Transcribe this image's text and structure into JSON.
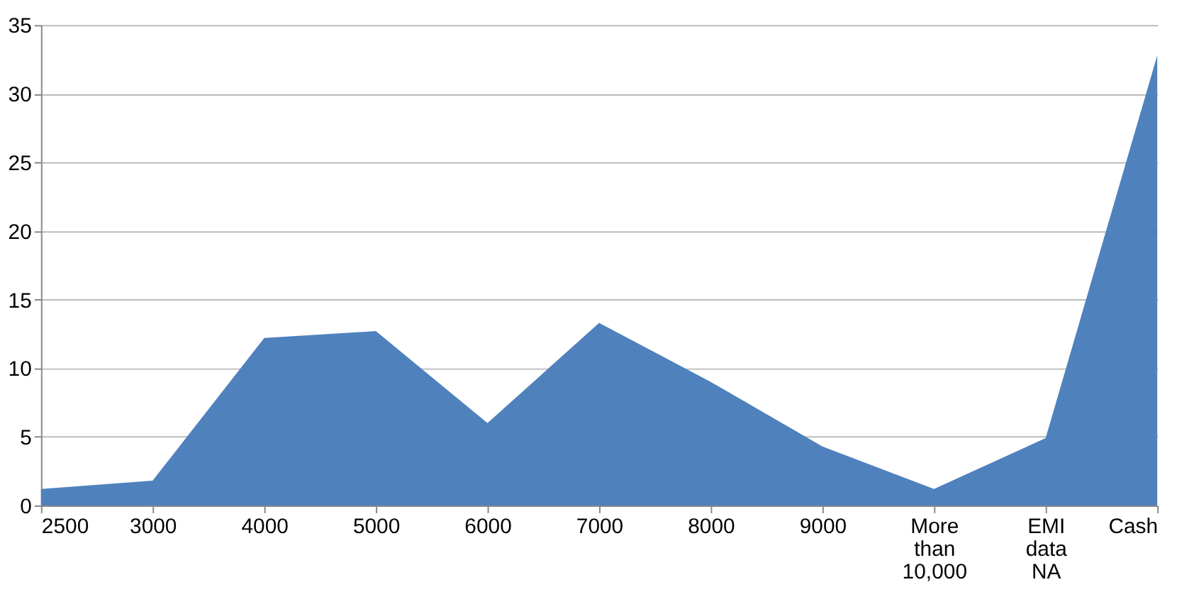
{
  "chart_data": {
    "type": "area",
    "categories": [
      "2500",
      "3000",
      "4000",
      "5000",
      "6000",
      "7000",
      "8000",
      "9000",
      "More than 10,000",
      "EMI data NA",
      "Cash"
    ],
    "series": [
      {
        "color": "#4f81bd",
        "values": [
          1.2,
          1.8,
          12.2,
          12.7,
          6.0,
          13.3,
          9.0,
          4.3,
          1.2,
          4.9,
          32.8
        ]
      }
    ],
    "ylim": [
      0,
      35
    ],
    "yticks": [
      0,
      5,
      10,
      15,
      20,
      25,
      30,
      35
    ],
    "grid": "y"
  }
}
